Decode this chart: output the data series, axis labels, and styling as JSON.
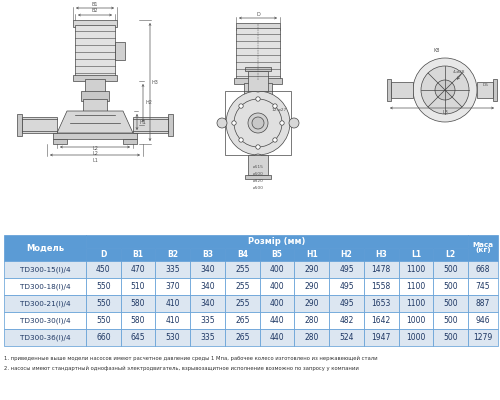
{
  "table_header_main": "Розмір (мм)",
  "table_col_model": "Модель",
  "table_col_mass": "Маса\n(кг)",
  "columns": [
    "D",
    "B1",
    "B2",
    "B3",
    "B4",
    "B5",
    "H1",
    "H2",
    "H3",
    "L1",
    "L2"
  ],
  "rows": [
    [
      "TD300-15(I)/4",
      450,
      470,
      335,
      340,
      255,
      400,
      290,
      495,
      1478,
      1100,
      500,
      668
    ],
    [
      "TD300-18(I)/4",
      550,
      510,
      370,
      340,
      255,
      400,
      290,
      495,
      1558,
      1100,
      500,
      745
    ],
    [
      "TD300-21(I)/4",
      550,
      580,
      410,
      340,
      255,
      400,
      290,
      495,
      1653,
      1100,
      500,
      887
    ],
    [
      "TD300-30(I)/4",
      550,
      580,
      410,
      335,
      265,
      440,
      280,
      482,
      1642,
      1000,
      500,
      946
    ],
    [
      "TD300-36(I)/4",
      660,
      645,
      530,
      335,
      265,
      440,
      280,
      524,
      1947,
      1000,
      500,
      1279
    ]
  ],
  "note1": "1. приведенные выше модели насосов имеют расчетное давление среды 1 Мпа, рабочее колесо изготовлено из нержавеющей стали",
  "note2": "2. насосы имеют стандартный однофазный электродвигатель, взрывозащитное исполнение возможно по запросу у компании",
  "header_bg": "#5b9bd5",
  "header_text": "#ffffff",
  "row_bg_odd": "#dce6f1",
  "row_bg_even": "#ffffff",
  "border_color": "#5b9bd5",
  "text_color": "#1f3864",
  "figure_bg": "#ffffff",
  "lc": "#444444",
  "lc_dim": "#555555"
}
